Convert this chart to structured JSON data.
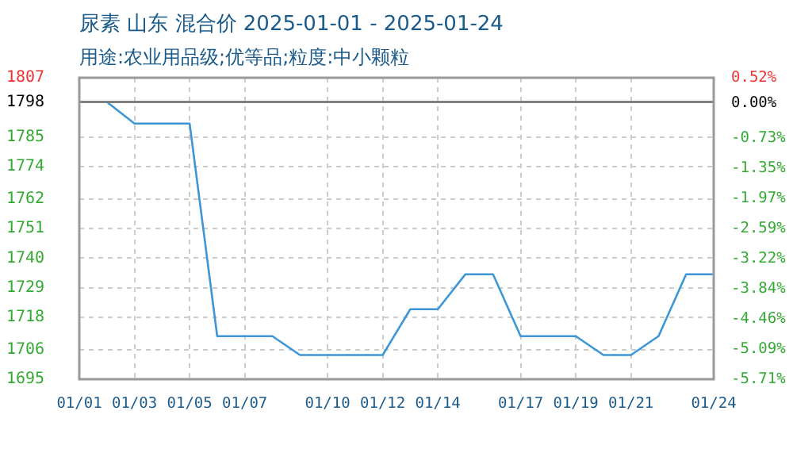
{
  "chart_data": {
    "type": "line",
    "title": "尿素 山东 混合价 2025-01-01 - 2025-01-24",
    "subtitle": "用途:农业用品级;优等品;粒度:中小颗粒",
    "x": [
      "2025-01-01",
      "2025-01-02",
      "2025-01-03",
      "2025-01-04",
      "2025-01-05",
      "2025-01-06",
      "2025-01-07",
      "2025-01-08",
      "2025-01-09",
      "2025-01-10",
      "2025-01-11",
      "2025-01-12",
      "2025-01-13",
      "2025-01-14",
      "2025-01-15",
      "2025-01-16",
      "2025-01-17",
      "2025-01-18",
      "2025-01-19",
      "2025-01-20",
      "2025-01-21",
      "2025-01-22",
      "2025-01-23",
      "2025-01-24"
    ],
    "series": [
      {
        "color": "#3d96d6",
        "values": [
          1798,
          1798,
          1790,
          1790,
          1790,
          1711,
          1711,
          1711,
          1704,
          1704,
          1704,
          1704,
          1721,
          1721,
          1734,
          1734,
          1711,
          1711,
          1711,
          1704,
          1704,
          1711,
          1734,
          1734
        ]
      }
    ],
    "xlim": [
      "2025-01-01",
      "2025-01-24"
    ],
    "xticks": [
      {
        "value": "2025-01-01",
        "label": "01/01"
      },
      {
        "value": "2025-01-03",
        "label": "01/03"
      },
      {
        "value": "2025-01-05",
        "label": "01/05"
      },
      {
        "value": "2025-01-07",
        "label": "01/07"
      },
      {
        "value": "2025-01-10",
        "label": "01/10"
      },
      {
        "value": "2025-01-12",
        "label": "01/12"
      },
      {
        "value": "2025-01-14",
        "label": "01/14"
      },
      {
        "value": "2025-01-17",
        "label": "01/17"
      },
      {
        "value": "2025-01-19",
        "label": "01/19"
      },
      {
        "value": "2025-01-21",
        "label": "01/21"
      },
      {
        "value": "2025-01-24",
        "label": "01/24"
      }
    ],
    "ylim": [
      1695,
      1807
    ],
    "yticks": [
      1695,
      1706,
      1718,
      1729,
      1740,
      1751,
      1762,
      1774,
      1785,
      1798,
      1807
    ],
    "y2lim": [
      -5.71,
      0.52
    ],
    "y2ticks": [
      {
        "value": -5.71,
        "label": "-5.71%"
      },
      {
        "value": -5.09,
        "label": "-5.09%"
      },
      {
        "value": -4.46,
        "label": "-4.46%"
      },
      {
        "value": -3.84,
        "label": "-3.84%"
      },
      {
        "value": -3.22,
        "label": "-3.22%"
      },
      {
        "value": -2.59,
        "label": "-2.59%"
      },
      {
        "value": -1.97,
        "label": "-1.97%"
      },
      {
        "value": -1.35,
        "label": "-1.35%"
      },
      {
        "value": -0.73,
        "label": "-0.73%"
      },
      {
        "value": 0,
        "label": "0.00%"
      },
      {
        "value": 0.52,
        "label": "0.52%"
      }
    ],
    "ref_lines": [
      {
        "axis": "y",
        "value": 1798,
        "color": "#808080"
      }
    ],
    "grid": true,
    "legend": false,
    "marker": "none",
    "line_style": "solid"
  }
}
